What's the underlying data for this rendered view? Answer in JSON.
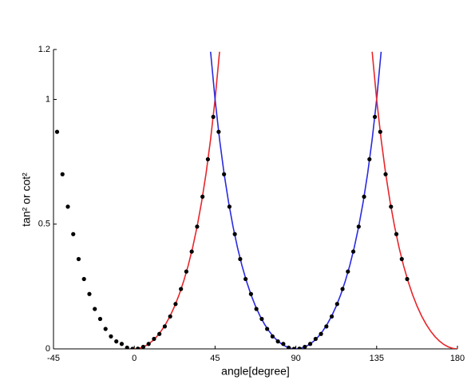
{
  "chart_data": {
    "type": "line",
    "xlabel": "angle[degree]",
    "ylabel": "tan² or cot²",
    "xlim": [
      -45,
      180
    ],
    "xticks": [
      -45,
      0,
      45,
      90,
      135,
      180
    ],
    "ylim": [
      0,
      1.2
    ],
    "yticks": [
      0,
      0.5,
      1,
      1.2
    ],
    "series": [
      {
        "style": "line",
        "color": "#e8262a",
        "x": [
          0,
          2.5,
          5,
          7.5,
          10,
          12.5,
          15,
          17.5,
          20,
          22.5,
          25,
          27.5,
          30,
          32.5,
          35,
          37.5,
          40,
          42.5,
          45,
          47.5
        ],
        "values": [
          0,
          0.0019,
          0.0077,
          0.0173,
          0.0311,
          0.0491,
          0.0718,
          0.0994,
          0.1325,
          0.1716,
          0.2174,
          0.271,
          0.3333,
          0.4059,
          0.4903,
          0.5888,
          0.7041,
          0.8397,
          1,
          1.191
        ]
      },
      {
        "style": "line",
        "color": "#2a2ae0",
        "x": [
          42.5,
          45,
          47.5,
          50,
          52.5,
          55,
          57.5,
          60,
          62.5,
          65,
          67.5,
          70,
          72.5,
          75,
          77.5,
          80,
          82.5,
          85,
          87.5,
          90,
          92.5,
          95,
          97.5,
          100,
          102.5,
          105,
          107.5,
          110,
          112.5,
          115,
          117.5,
          120,
          122.5,
          125,
          127.5,
          130,
          132.5,
          135,
          137.5
        ],
        "values": [
          1.191,
          1,
          0.8397,
          0.7041,
          0.5888,
          0.4903,
          0.4059,
          0.3333,
          0.271,
          0.2174,
          0.1716,
          0.1325,
          0.0994,
          0.0718,
          0.0491,
          0.0311,
          0.0173,
          0.0077,
          0.0019,
          0,
          0.0019,
          0.0077,
          0.0173,
          0.0311,
          0.0491,
          0.0718,
          0.0994,
          0.1325,
          0.1716,
          0.2174,
          0.271,
          0.3333,
          0.4059,
          0.4903,
          0.5888,
          0.7041,
          0.8397,
          1,
          1.191
        ]
      },
      {
        "style": "line",
        "color": "#e8262a",
        "x": [
          132.5,
          135,
          137.5,
          140,
          142.5,
          145,
          147.5,
          150,
          152.5,
          155,
          157.5,
          160,
          162.5,
          165,
          167.5,
          170,
          172.5,
          175,
          177.5,
          180
        ],
        "values": [
          1.191,
          1,
          0.8397,
          0.7041,
          0.5888,
          0.4903,
          0.4059,
          0.3333,
          0.271,
          0.2174,
          0.1716,
          0.1325,
          0.0994,
          0.0718,
          0.0491,
          0.0311,
          0.0173,
          0.0077,
          0.0019,
          0
        ]
      },
      {
        "style": "dots",
        "color": "#000000",
        "x": [
          -43,
          -40,
          -37,
          -34,
          -31,
          -28,
          -25,
          -22,
          -19,
          -16,
          -13,
          -10,
          -7,
          -4,
          -1,
          2,
          5,
          8,
          11,
          14,
          17,
          20,
          23,
          26,
          29,
          32,
          35,
          38,
          41,
          44,
          47,
          50,
          53,
          56,
          59,
          62,
          65,
          68,
          71,
          74,
          77,
          80,
          83,
          86,
          89,
          92,
          95,
          98,
          101,
          104,
          107,
          110,
          113,
          116,
          119,
          122,
          125,
          128,
          131,
          134,
          137,
          140,
          143,
          146,
          149,
          152
        ],
        "values": [
          0.87,
          0.7,
          0.57,
          0.46,
          0.36,
          0.28,
          0.22,
          0.16,
          0.12,
          0.08,
          0.05,
          0.03,
          0.02,
          0.005,
          0,
          0.001,
          0.008,
          0.02,
          0.04,
          0.06,
          0.09,
          0.13,
          0.18,
          0.24,
          0.31,
          0.39,
          0.49,
          0.61,
          0.76,
          0.93,
          0.87,
          0.7,
          0.57,
          0.46,
          0.36,
          0.28,
          0.22,
          0.16,
          0.12,
          0.08,
          0.05,
          0.03,
          0.02,
          0.005,
          0,
          0.001,
          0.008,
          0.02,
          0.04,
          0.06,
          0.09,
          0.13,
          0.18,
          0.24,
          0.31,
          0.39,
          0.49,
          0.61,
          0.76,
          0.93,
          0.87,
          0.7,
          0.57,
          0.46,
          0.36,
          0.28
        ]
      }
    ]
  }
}
